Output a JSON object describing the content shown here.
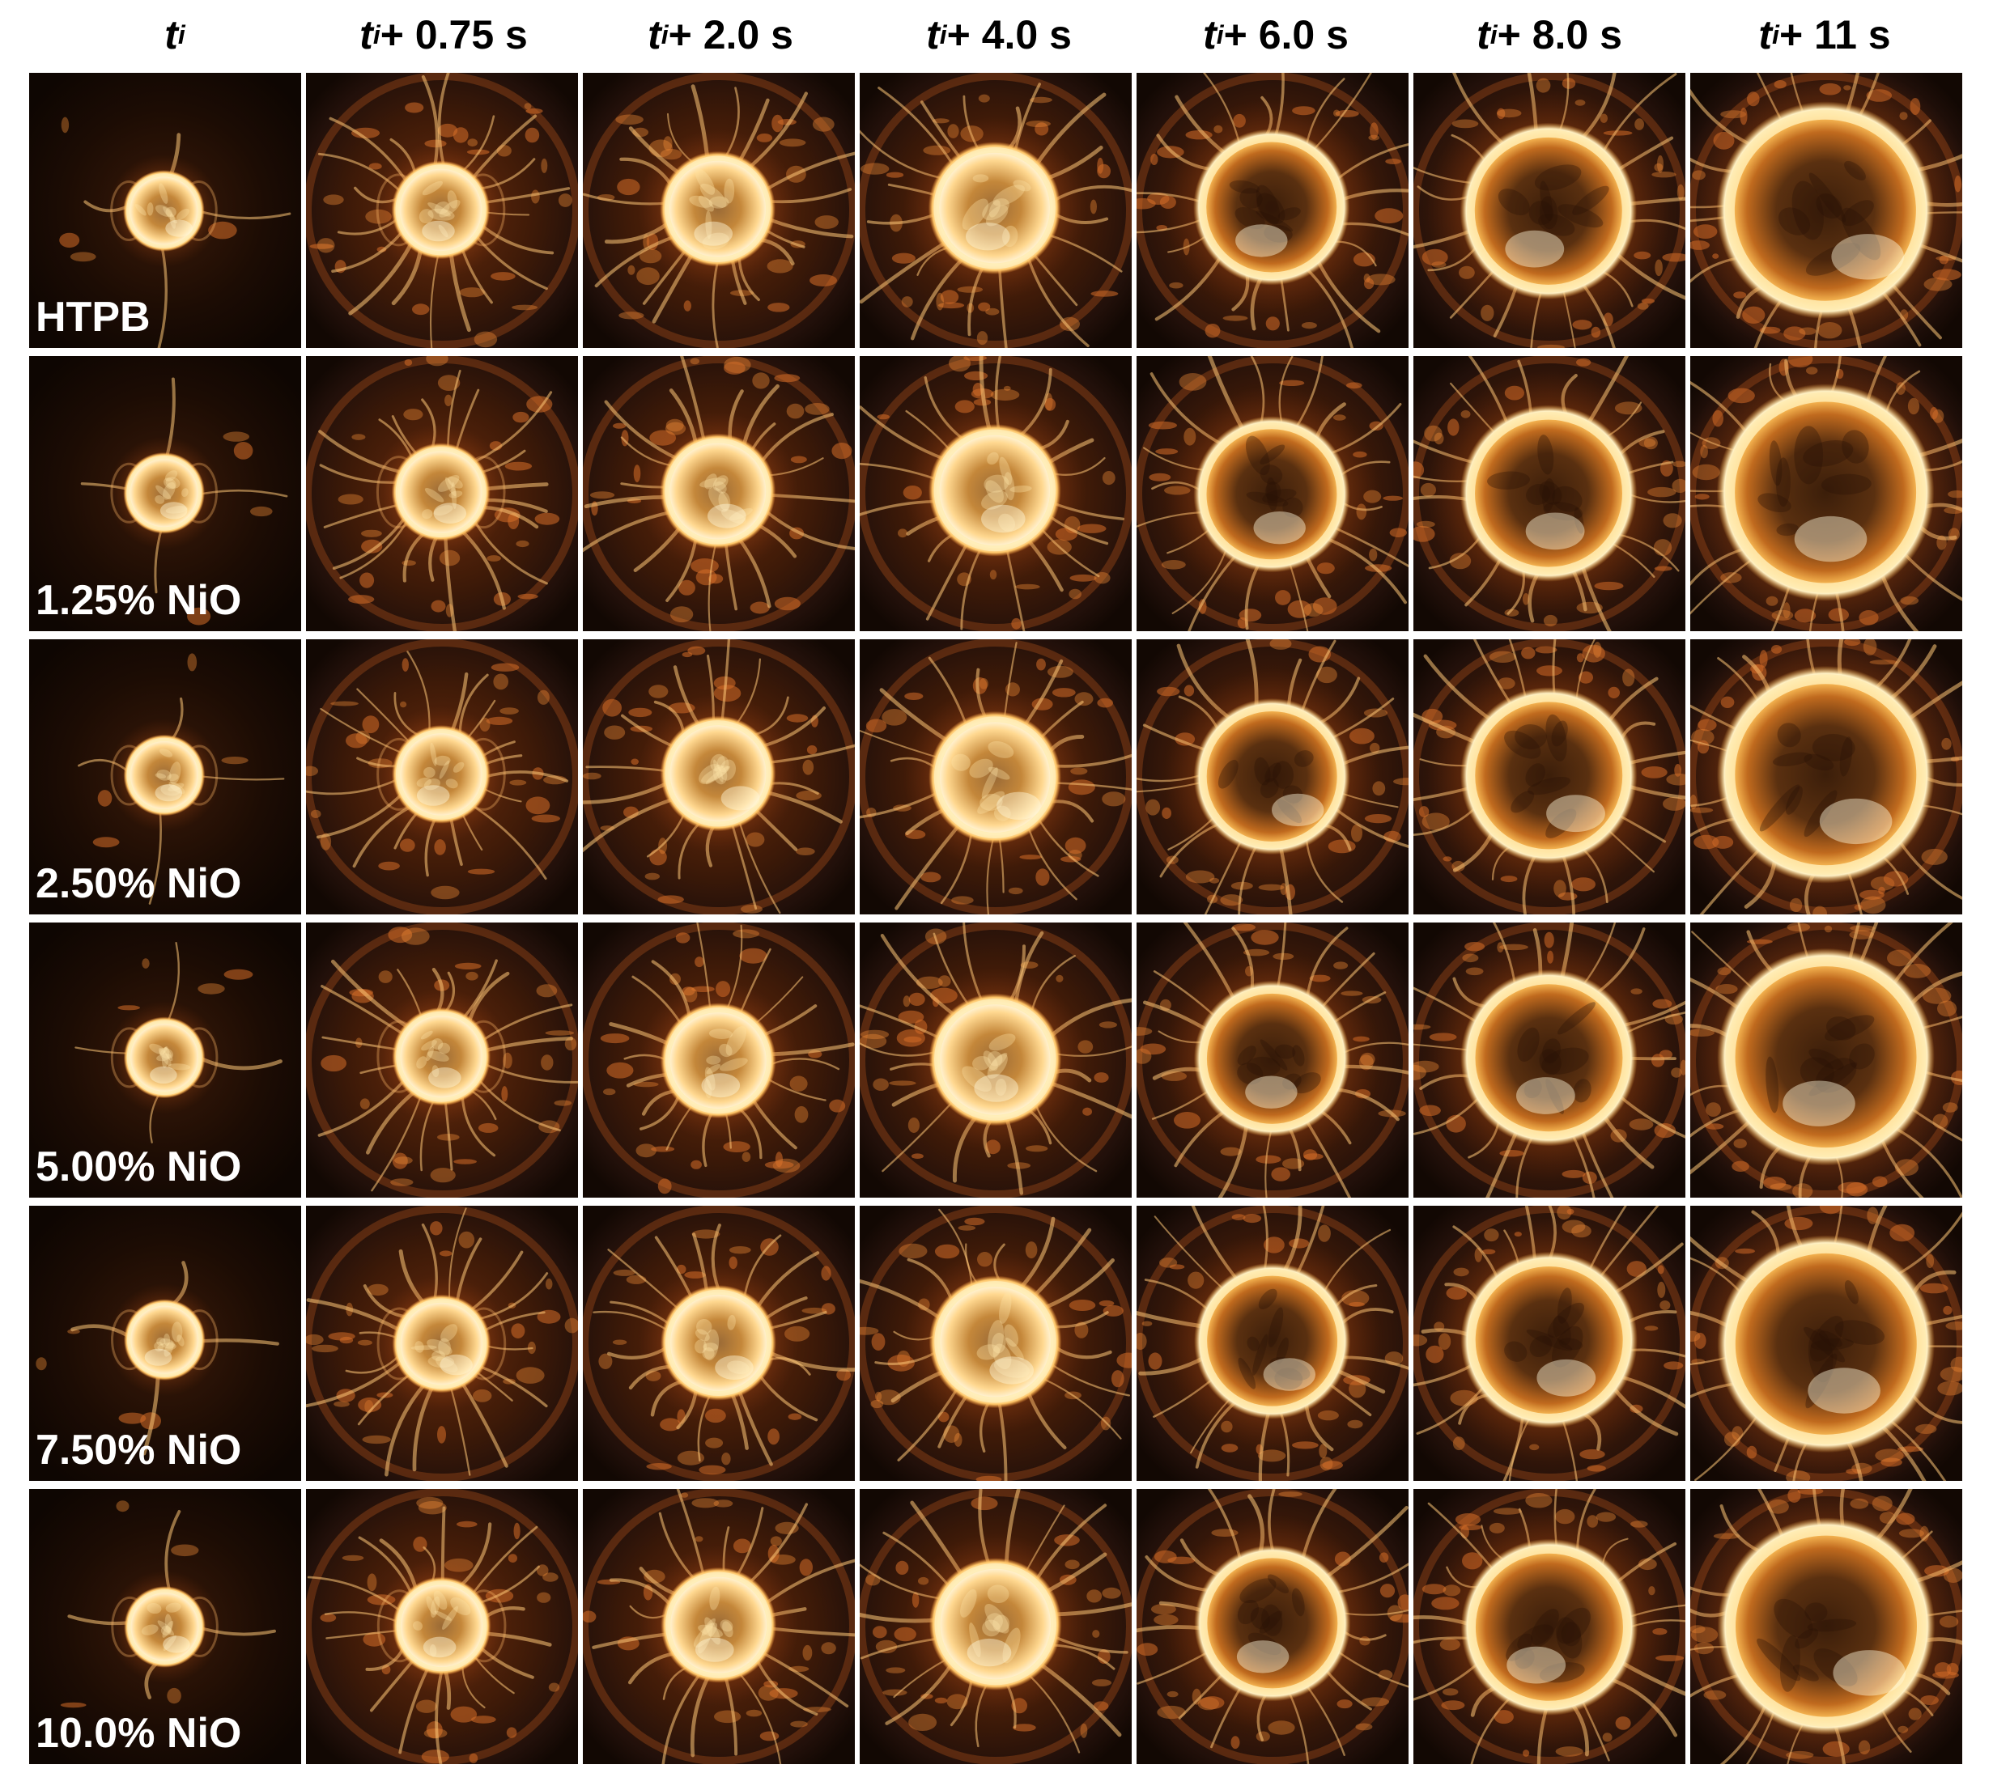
{
  "figure": {
    "column_headers": [
      {
        "base": "t",
        "subscript": "i",
        "suffix": ""
      },
      {
        "base": "t",
        "subscript": "i",
        "suffix": " + 0.75 s"
      },
      {
        "base": "t",
        "subscript": "i",
        "suffix": " + 2.0 s"
      },
      {
        "base": "t",
        "subscript": "i",
        "suffix": " + 4.0 s"
      },
      {
        "base": "t",
        "subscript": "i",
        "suffix": " + 6.0 s"
      },
      {
        "base": "t",
        "subscript": "i",
        "suffix": " + 8.0 s"
      },
      {
        "base": "t",
        "subscript": "i",
        "suffix": " + 11 s"
      }
    ],
    "row_labels": [
      "HTPB",
      "1.25% NiO",
      "2.50% NiO",
      "5.00% NiO",
      "7.50% NiO",
      "10.0% NiO"
    ],
    "colors": {
      "background": "#ffffff",
      "frame_dark": "#160a04",
      "flame_core": "#fff6d8",
      "flame_ring": "#ffb94a",
      "flame_outer": "#d4621a",
      "label_text": "#ffffff",
      "header_text": "#000000"
    }
  }
}
